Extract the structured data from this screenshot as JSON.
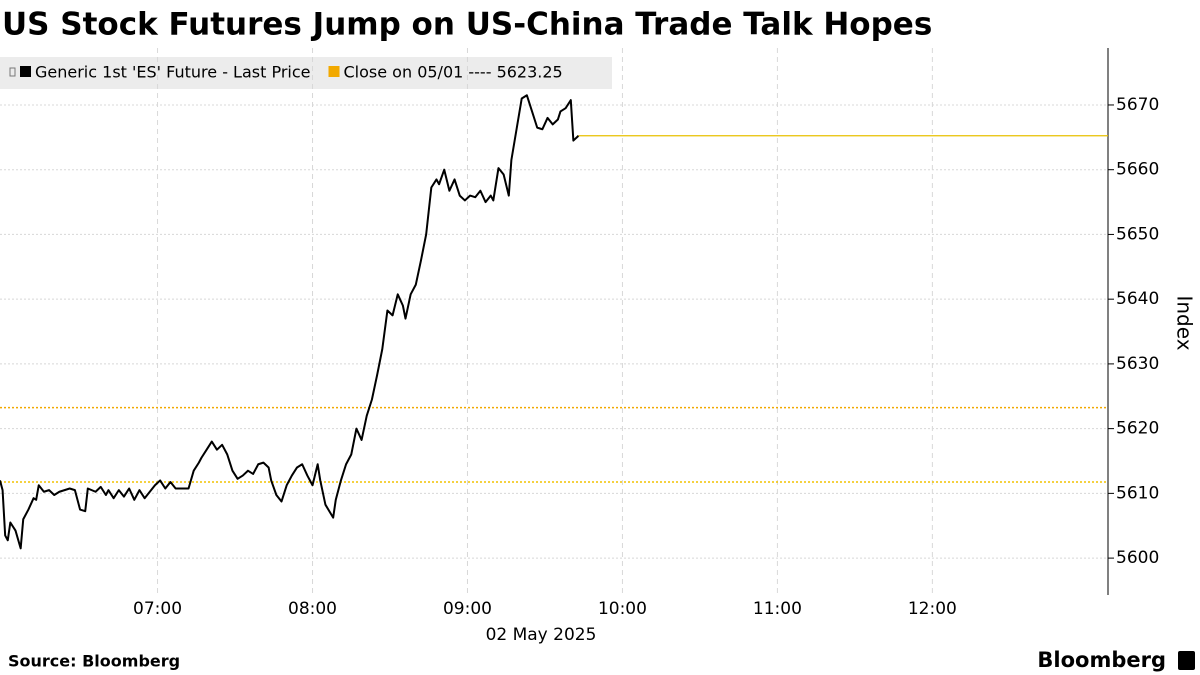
{
  "chart_data": {
    "type": "line",
    "title": "US Stock Futures Jump on US-China Trade Talk Hopes",
    "x": [
      "05:59",
      "06:00",
      "06:01",
      "06:02",
      "06:03",
      "06:05",
      "06:07",
      "06:08",
      "06:10",
      "06:12",
      "06:13",
      "06:14",
      "06:16",
      "06:18",
      "06:20",
      "06:22",
      "06:24",
      "06:26",
      "06:28",
      "06:30",
      "06:32",
      "06:33",
      "06:36",
      "06:38",
      "06:40",
      "06:41",
      "06:43",
      "06:45",
      "06:47",
      "06:49",
      "06:51",
      "06:53",
      "06:55",
      "06:57",
      "06:59",
      "07:01",
      "07:03",
      "07:05",
      "07:07",
      "07:09",
      "07:12",
      "07:14",
      "07:16",
      "07:17",
      "07:19",
      "07:21",
      "07:23",
      "07:25",
      "07:27",
      "07:29",
      "07:31",
      "07:33",
      "07:35",
      "07:37",
      "07:39",
      "07:41",
      "07:43",
      "07:44",
      "07:46",
      "07:48",
      "07:50",
      "07:52",
      "07:54",
      "07:56",
      "07:58",
      "08:00",
      "08:02",
      "08:03",
      "08:05",
      "08:08",
      "08:09",
      "08:11",
      "08:13",
      "08:15",
      "08:17",
      "08:19",
      "08:21",
      "08:23",
      "08:25",
      "08:27",
      "08:29",
      "08:31",
      "08:33",
      "08:35",
      "08:36",
      "08:38",
      "08:40",
      "08:42",
      "08:44",
      "08:46",
      "08:48",
      "08:49",
      "08:51",
      "08:53",
      "08:55",
      "08:57",
      "08:59",
      "09:01",
      "09:03",
      "09:05",
      "09:07",
      "09:09",
      "09:10",
      "09:12",
      "09:14",
      "09:16",
      "09:17",
      "09:19",
      "09:21",
      "09:23",
      "09:25",
      "09:27",
      "09:29",
      "09:31",
      "09:33",
      "09:35",
      "09:36",
      "09:38",
      "09:40",
      "09:41",
      "09:43"
    ],
    "series": [
      {
        "name": "Generic 1st 'ES' Future - Last Price",
        "color": "#000000",
        "values": [
          5612,
          5610.5,
          5603.5,
          5602.75,
          5605.5,
          5604.25,
          5601.5,
          5606,
          5607.5,
          5609.25,
          5609,
          5611.25,
          5610.25,
          5610.5,
          5609.75,
          5610.25,
          5610.5,
          5610.75,
          5610.5,
          5607.5,
          5607.25,
          5610.75,
          5610.25,
          5611,
          5609.75,
          5610.5,
          5609.25,
          5610.5,
          5609.5,
          5610.75,
          5609,
          5610.5,
          5609.25,
          5610.25,
          5611.25,
          5612,
          5610.75,
          5611.75,
          5610.75,
          5610.75,
          5610.75,
          5613.5,
          5614.75,
          5615.5,
          5616.75,
          5618,
          5616.75,
          5617.5,
          5616,
          5613.5,
          5612.25,
          5612.75,
          5613.5,
          5613,
          5614.5,
          5614.75,
          5614,
          5612,
          5609.75,
          5608.75,
          5611.25,
          5612.75,
          5614,
          5614.5,
          5612.75,
          5611.25,
          5614.5,
          5612,
          5608.25,
          5606.25,
          5609,
          5612,
          5614.5,
          5616,
          5620,
          5618.25,
          5622,
          5624.5,
          5628.25,
          5632.25,
          5638.25,
          5637.5,
          5640.75,
          5639,
          5637,
          5640.75,
          5642.25,
          5646,
          5650,
          5657.25,
          5658.5,
          5657.75,
          5660,
          5656.75,
          5658.5,
          5656,
          5655.25,
          5656,
          5655.75,
          5656.75,
          5655,
          5656,
          5655.25,
          5660.25,
          5659.25,
          5656,
          5661.5,
          5666.25,
          5671,
          5671.5,
          5669,
          5666.5,
          5666.25,
          5668,
          5667,
          5667.75,
          5669,
          5669.5,
          5670.75,
          5664.5,
          5665.25
        ]
      }
    ],
    "reference_lines": [
      {
        "name": "Close on 05/01 ---- 5623.25",
        "value": 5623.25,
        "color": "#f2a900"
      },
      {
        "value": 5611.75,
        "color": "#f2c200"
      }
    ],
    "last_value_line_color": "#e8c000",
    "xlim": [
      "05:59",
      "13:08"
    ],
    "xticks": [
      "07:00",
      "08:00",
      "09:00",
      "10:00",
      "11:00",
      "12:00"
    ],
    "x_label": "02 May 2025",
    "ylim": [
      5594.3,
      5678.8
    ],
    "yticks": [
      5600,
      5610,
      5620,
      5630,
      5640,
      5650,
      5660,
      5670
    ],
    "y_label": "Index",
    "grid": true
  },
  "footer": {
    "source": "Source: Bloomberg",
    "brand": "Bloomberg"
  }
}
